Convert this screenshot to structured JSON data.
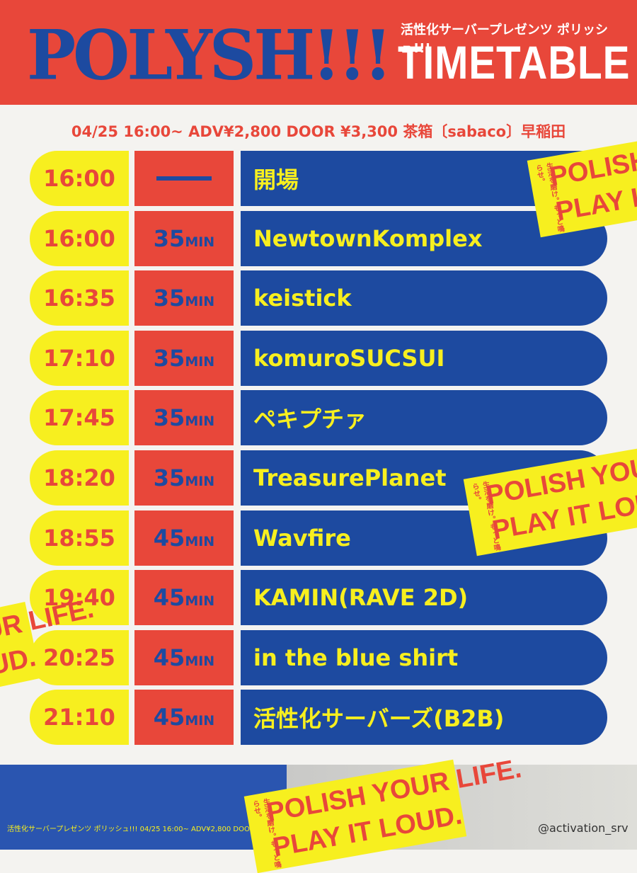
{
  "header": {
    "logo": "POLYSH!!!",
    "subtitle": "活性化サーバープレゼンツ ポリッシュ!!!",
    "title": "TIMETABLE"
  },
  "info": "04/25 16:00~ ADV¥2,800 DOOR ¥3,300 茶箱〔sabaco〕早稲田",
  "rows": [
    {
      "time": "16:00",
      "act": "開場"
    },
    {
      "time": "16:00",
      "duration": "35",
      "unit": "MIN",
      "act": "NewtownKomplex"
    },
    {
      "time": "16:35",
      "duration": "35",
      "unit": "MIN",
      "act": "keistick"
    },
    {
      "time": "17:10",
      "duration": "35",
      "unit": "MIN",
      "act": "komuroSUCSUI"
    },
    {
      "time": "17:45",
      "duration": "35",
      "unit": "MIN",
      "act": "ペキプチァ"
    },
    {
      "time": "18:20",
      "duration": "35",
      "unit": "MIN",
      "act": "TreasurePlanet"
    },
    {
      "time": "18:55",
      "duration": "45",
      "unit": "MIN",
      "act": "Wavfire"
    },
    {
      "time": "19:40",
      "duration": "45",
      "unit": "MIN",
      "act": "KAMIN(RAVE 2D)"
    },
    {
      "time": "20:25",
      "duration": "45",
      "unit": "MIN",
      "act": "in the blue shirt"
    },
    {
      "time": "21:10",
      "duration": "45",
      "unit": "MIN",
      "act": "活性化サーバーズ(B2B)"
    }
  ],
  "stickers": [
    {
      "small": "生活を磨け。もっと鳴らせ。",
      "line1": "POLISH YOUR LIFE.",
      "line2": "PLAY IT LOUD."
    },
    {
      "small": "生活を磨け。もっと鳴らせ。",
      "line1": "POLISH YOUR LIFE.",
      "line2": "PLAY IT LOUD."
    },
    {
      "small": "生活を磨け。もっと鳴らせ。",
      "line1": "POLISH YOUR LIFE.",
      "line2": "PLAY IT LOUD."
    },
    {
      "small": "生活を磨け。もっと鳴らせ。",
      "line1": "POLISH YOUR LIFE.",
      "line2": "PLAY IT LOUD."
    }
  ],
  "footer": {
    "text": "活性化サーバープレゼンツ ポリッシュ!!! 04/25 16:00~ ADV¥2,800 DOOR ¥3,300",
    "handle": "@activation_srv"
  }
}
